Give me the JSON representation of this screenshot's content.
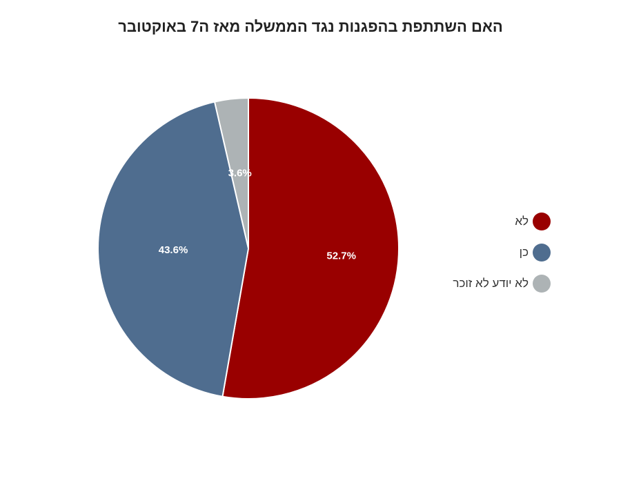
{
  "chart_data": {
    "type": "pie",
    "title": "האם השתתפת בהפגנות נגד הממשלה מאז ה7 באוקטובר",
    "categories": [
      "לא",
      "כן",
      "לא יודע לא זוכר"
    ],
    "values": [
      52.7,
      43.6,
      3.6
    ],
    "value_labels": [
      "52.7%",
      "43.6%",
      "3.6%"
    ],
    "colors": [
      "#990000",
      "#4f6d8f",
      "#adb3b5"
    ],
    "legend_position": "right",
    "start_angle": "top, clockwise"
  }
}
